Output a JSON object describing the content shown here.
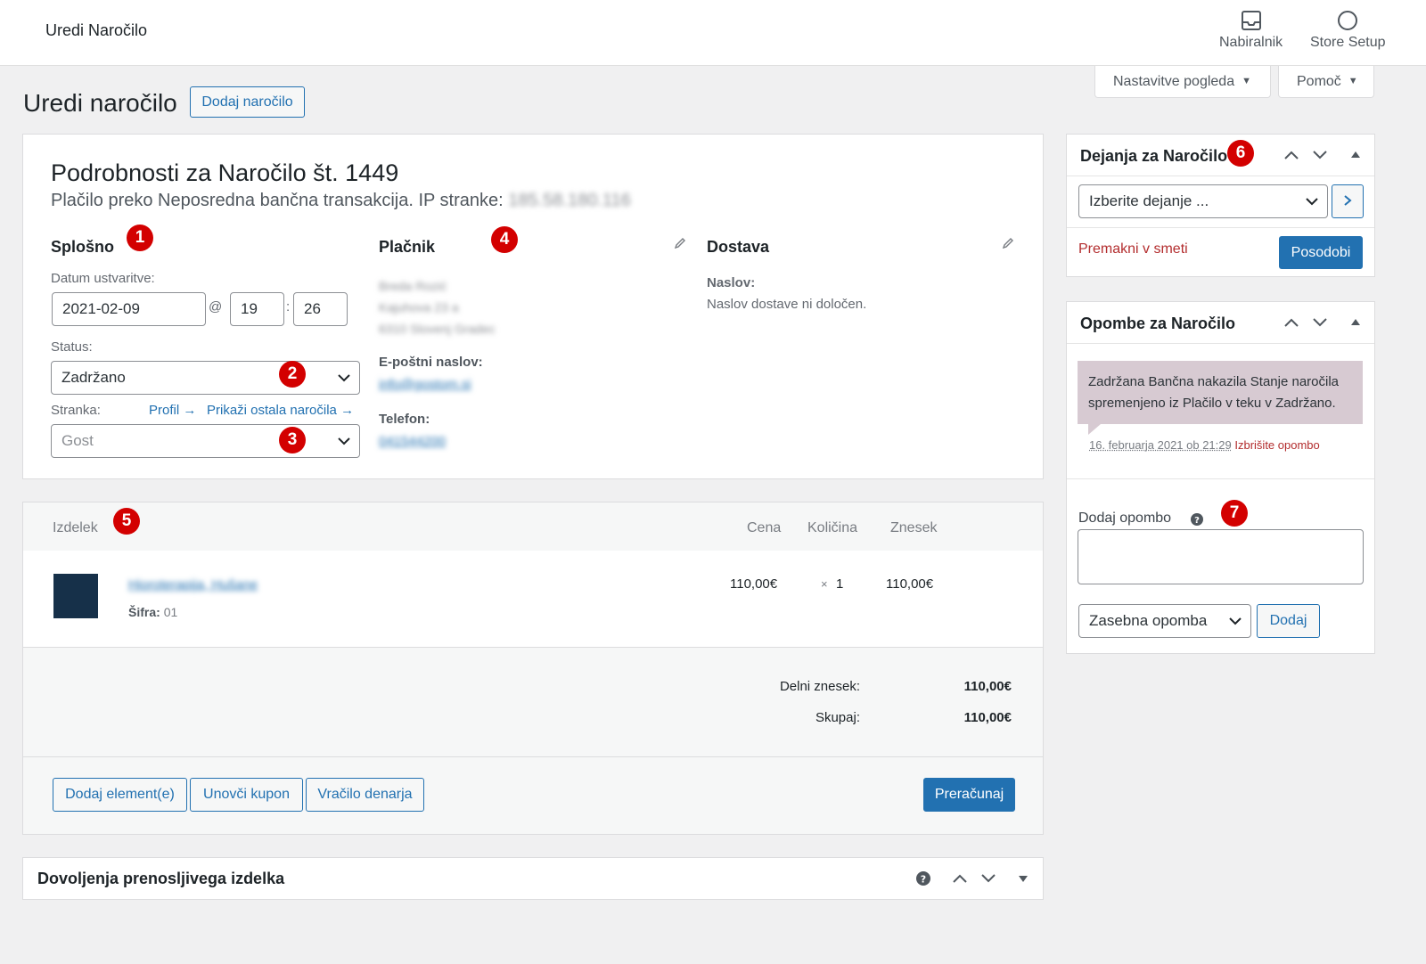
{
  "topbar": {
    "title": "Uredi Naročilo",
    "inbox_label": "Nabiralnik",
    "setup_label": "Store Setup"
  },
  "screen_options": "Nastavitve pogleda",
  "help": "Pomoč",
  "page": {
    "title": "Uredi naročilo",
    "add_order": "Dodaj naročilo"
  },
  "order": {
    "heading": "Podrobnosti za Naročilo št. 1449",
    "payment_line": "Plačilo preko Neposredna bančna transakcija. IP stranke:",
    "ip": "185.58.180.116",
    "general": {
      "title": "Splošno",
      "date_label": "Datum ustvaritve:",
      "date": "2021-02-09",
      "at": "@",
      "hour": "19",
      "colon": ":",
      "minute": "26",
      "status_label": "Status:",
      "status": "Zadržano",
      "customer_label": "Stranka:",
      "profile_link": "Profil →",
      "other_orders_link": "Prikaži ostala naročila →",
      "customer": "Gost"
    },
    "billing": {
      "title": "Plačnik",
      "address_lines": [
        "Breda Rozić",
        "Kajuhova 23 a",
        "6310 Slovenj Gradec"
      ],
      "email_label": "E-poštni naslov:",
      "email": "info@gostom.si",
      "phone_label": "Telefon:",
      "phone": "041544200"
    },
    "shipping": {
      "title": "Dostava",
      "address_label": "Naslov:",
      "address_value": "Naslov dostave ni določen."
    }
  },
  "items": {
    "col_product": "Izdelek",
    "col_price": "Cena",
    "col_qty": "Količina",
    "col_total": "Znesek",
    "rows": [
      {
        "name": "Hioroterapija, Hušane",
        "sku_label": "Šifra:",
        "sku": "01",
        "price": "110,00€",
        "qty_x": "×",
        "qty": "1",
        "total": "110,00€",
        "thumb_color": "#163049"
      }
    ],
    "subtotal_label": "Delni znesek:",
    "subtotal": "110,00€",
    "total_label": "Skupaj:",
    "total": "110,00€",
    "add_items": "Dodaj element(e)",
    "apply_coupon": "Unovči kupon",
    "refund": "Vračilo denarja",
    "recalculate": "Preračunaj"
  },
  "downloads": {
    "title": "Dovoljenja prenosljivega izdelka"
  },
  "actions": {
    "title": "Dejanja za Naročilo",
    "select": "Izberite dejanje ...",
    "trash": "Premakni v smeti",
    "update": "Posodobi"
  },
  "notes": {
    "title": "Opombe za Naročilo",
    "note_text": "Zadržana Bančna nakazila Stanje naročila spremenjeno iz Plačilo v teku v Zadržano.",
    "note_date": "16. februarja 2021 ob 21:29",
    "delete_note": "Izbrišite opombo",
    "add_label": "Dodaj opombo",
    "help_icon": "?",
    "note_type": "Zasebna opomba",
    "add_button": "Dodaj"
  },
  "badges": [
    "1",
    "2",
    "3",
    "4",
    "5",
    "6",
    "7"
  ],
  "colors": {
    "accent": "#2271b1",
    "badge": "#d30000",
    "note_bg": "#d7cad2",
    "trash": "#b32d2e"
  }
}
